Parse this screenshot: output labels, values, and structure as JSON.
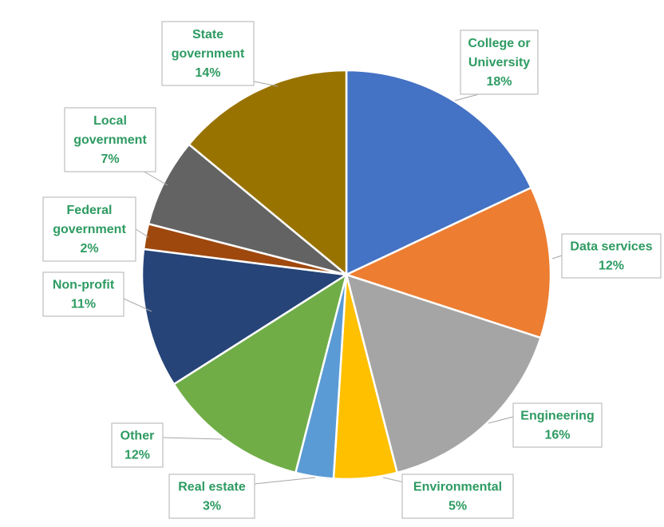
{
  "chart_data": {
    "type": "pie",
    "title": "",
    "slices": [
      {
        "name": "College or University",
        "label_lines": [
          "College or",
          "University"
        ],
        "value": 18,
        "value_label": "18%",
        "color": "#4472c4"
      },
      {
        "name": "Data services",
        "label_lines": [
          "Data services"
        ],
        "value": 12,
        "value_label": "12%",
        "color": "#ed7d31"
      },
      {
        "name": "Engineering",
        "label_lines": [
          "Engineering"
        ],
        "value": 16,
        "value_label": "16%",
        "color": "#a5a5a5"
      },
      {
        "name": "Environmental",
        "label_lines": [
          "Environmental"
        ],
        "value": 5,
        "value_label": "5%",
        "color": "#ffc000"
      },
      {
        "name": "Real estate",
        "label_lines": [
          "Real estate"
        ],
        "value": 3,
        "value_label": "3%",
        "color": "#5b9bd5"
      },
      {
        "name": "Other",
        "label_lines": [
          "Other"
        ],
        "value": 12,
        "value_label": "12%",
        "color": "#70ad47"
      },
      {
        "name": "Non-profit",
        "label_lines": [
          "Non-profit"
        ],
        "value": 11,
        "value_label": "11%",
        "color": "#264478"
      },
      {
        "name": "Federal government",
        "label_lines": [
          "Federal",
          "government"
        ],
        "value": 2,
        "value_label": "2%",
        "color": "#9e480e"
      },
      {
        "name": "Local government",
        "label_lines": [
          "Local",
          "government"
        ],
        "value": 7,
        "value_label": "7%",
        "color": "#636363"
      },
      {
        "name": "State government",
        "label_lines": [
          "State",
          "government"
        ],
        "value": 14,
        "value_label": "14%",
        "color": "#997300"
      }
    ],
    "start_angle_deg": 0,
    "direction": "clockwise",
    "label_color": "#2e9b62",
    "legend": "none",
    "data_labels": "callouts"
  }
}
